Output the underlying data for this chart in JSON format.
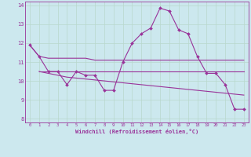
{
  "xlabel": "Windchill (Refroidissement éolien,°C)",
  "background_color": "#cce8ee",
  "line_color": "#993399",
  "grid_color": "#b8d8cc",
  "xlim": [
    -0.5,
    23.5
  ],
  "ylim": [
    7.8,
    14.2
  ],
  "yticks": [
    8,
    9,
    10,
    11,
    12,
    13,
    14
  ],
  "xticks": [
    0,
    1,
    2,
    3,
    4,
    5,
    6,
    7,
    8,
    9,
    10,
    11,
    12,
    13,
    14,
    15,
    16,
    17,
    18,
    19,
    20,
    21,
    22,
    23
  ],
  "series": [
    {
      "x": [
        0,
        1,
        2,
        3,
        4,
        5,
        6,
        7,
        8,
        9,
        10,
        11,
        12,
        13,
        14,
        15,
        16,
        17,
        18,
        19,
        20,
        21,
        22,
        23
      ],
      "y": [
        11.9,
        11.3,
        11.2,
        11.2,
        11.2,
        11.2,
        11.2,
        11.1,
        11.1,
        11.1,
        11.1,
        11.1,
        11.1,
        11.1,
        11.1,
        11.1,
        11.1,
        11.1,
        11.1,
        11.1,
        11.1,
        11.1,
        11.1,
        11.1
      ],
      "marker": false,
      "lw": 0.8
    },
    {
      "x": [
        1,
        2,
        3,
        4,
        5,
        6,
        7,
        8,
        9,
        10,
        11,
        12,
        13,
        14,
        15,
        16,
        17,
        18,
        19,
        20,
        21,
        22,
        23
      ],
      "y": [
        10.5,
        10.5,
        10.5,
        10.5,
        10.5,
        10.5,
        10.5,
        10.5,
        10.5,
        10.5,
        10.5,
        10.5,
        10.5,
        10.5,
        10.5,
        10.5,
        10.5,
        10.5,
        10.5,
        10.5,
        10.5,
        10.5,
        10.5
      ],
      "marker": false,
      "lw": 0.8
    },
    {
      "x": [
        1,
        2,
        3,
        4,
        5,
        6,
        7,
        8,
        9,
        10,
        11,
        12,
        13,
        14,
        15,
        16,
        17,
        18,
        19,
        20,
        21,
        22,
        23
      ],
      "y": [
        10.5,
        10.4,
        10.3,
        10.2,
        10.15,
        10.1,
        10.05,
        10.0,
        9.95,
        9.9,
        9.85,
        9.8,
        9.75,
        9.7,
        9.65,
        9.6,
        9.55,
        9.5,
        9.45,
        9.4,
        9.35,
        9.3,
        9.25
      ],
      "marker": false,
      "lw": 0.8
    },
    {
      "x": [
        0,
        1,
        2,
        3,
        4,
        5,
        6,
        7,
        8,
        9,
        10,
        11,
        12,
        13,
        14,
        15,
        16,
        17,
        18,
        19,
        20,
        21,
        22,
        23
      ],
      "y": [
        11.9,
        11.3,
        10.5,
        10.5,
        9.8,
        10.5,
        10.3,
        10.3,
        9.5,
        9.5,
        11.0,
        12.0,
        12.5,
        12.8,
        13.85,
        13.7,
        12.7,
        12.5,
        11.3,
        10.4,
        10.4,
        9.8,
        8.5,
        8.5
      ],
      "marker": true,
      "lw": 0.8
    }
  ]
}
